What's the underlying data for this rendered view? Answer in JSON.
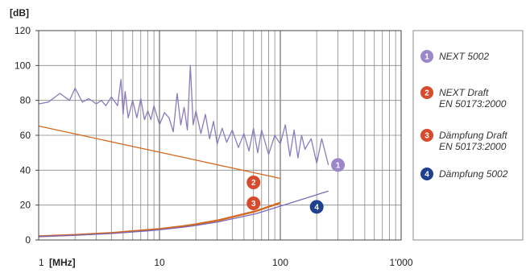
{
  "chart_data": {
    "type": "line",
    "ylabel": "[dB]",
    "xlabel": "[MHz]",
    "x_scale": "log",
    "xlim": [
      1,
      1000
    ],
    "ylim": [
      0,
      120
    ],
    "grid": true,
    "legend_position": "right",
    "x_ticks": [
      {
        "value": 1,
        "label": "1"
      },
      {
        "value": 10,
        "label": "10"
      },
      {
        "value": 100,
        "label": "100"
      },
      {
        "value": 1000,
        "label": "1'000"
      }
    ],
    "y_ticks": [
      {
        "value": 0,
        "label": "0"
      },
      {
        "value": 20,
        "label": "20"
      },
      {
        "value": 40,
        "label": "40"
      },
      {
        "value": 60,
        "label": "60"
      },
      {
        "value": 80,
        "label": "80"
      },
      {
        "value": 100,
        "label": "100"
      },
      {
        "value": 120,
        "label": "120"
      }
    ],
    "series": [
      {
        "id": "1",
        "name": "NEXT 5002",
        "color": "#8b7bbd",
        "badge_color": "#9b87c9",
        "x": [
          1,
          1.2,
          1.5,
          1.8,
          2,
          2.3,
          2.6,
          3,
          3.3,
          3.6,
          4,
          4.5,
          4.8,
          5,
          5.2,
          5.5,
          6,
          6.5,
          7,
          7.5,
          8,
          8.5,
          9,
          10,
          11,
          12,
          13,
          14,
          15,
          16,
          17,
          18,
          19,
          20,
          22,
          24,
          26,
          28,
          30,
          33,
          36,
          40,
          45,
          50,
          55,
          60,
          65,
          70,
          80,
          90,
          100,
          110,
          120,
          130,
          140,
          150,
          160,
          180,
          200,
          220,
          250
        ],
        "values": [
          78,
          79,
          84,
          80,
          87,
          79,
          81,
          78,
          80,
          77,
          82,
          77,
          92,
          72,
          85,
          70,
          80,
          70,
          81,
          69,
          74,
          69,
          77,
          66,
          73,
          70,
          62,
          84,
          66,
          76,
          63,
          100,
          66,
          74,
          61,
          72,
          58,
          68,
          55,
          64,
          56,
          63,
          53,
          61,
          51,
          64,
          50,
          63,
          49,
          60,
          55,
          66,
          48,
          63,
          47,
          60,
          52,
          58,
          44,
          58,
          43
        ]
      },
      {
        "id": "2",
        "name": "NEXT Draft EN 50173:2000",
        "color": "#d2691e",
        "badge_color": "#d84a2c",
        "x": [
          1,
          2,
          5,
          10,
          20,
          50,
          100
        ],
        "values": [
          65.3,
          60.8,
          54.8,
          50.3,
          45.8,
          39.8,
          35.3
        ]
      },
      {
        "id": "3",
        "name": "Dämpfung Draft EN 50173:2000",
        "color": "#d2691e",
        "badge_color": "#d84a2c",
        "x": [
          1,
          2,
          4,
          8,
          10,
          16,
          20,
          31.25,
          62.5,
          100
        ],
        "values": [
          2.1,
          2.9,
          4.0,
          5.7,
          6.3,
          8.0,
          9.0,
          11.4,
          16.5,
          21.3
        ]
      },
      {
        "id": "4",
        "name": "Dämpfung 5002",
        "color": "#7b68b8",
        "badge_color": "#1f3f8f",
        "x": [
          1,
          2,
          4,
          8,
          10,
          16,
          20,
          31.25,
          62.5,
          100,
          155,
          250
        ],
        "values": [
          2.0,
          2.7,
          3.7,
          5.2,
          5.8,
          7.4,
          8.3,
          10.5,
          15.0,
          19.4,
          23.5,
          28.0
        ]
      }
    ],
    "legend": [
      {
        "num": "1",
        "lines": [
          "NEXT 5002"
        ],
        "color": "#9b87c9"
      },
      {
        "num": "2",
        "lines": [
          "NEXT Draft",
          "EN 50173:2000"
        ],
        "color": "#d84a2c"
      },
      {
        "num": "3",
        "lines": [
          "Dämpfung Draft",
          "EN 50173:2000"
        ],
        "color": "#d84a2c"
      },
      {
        "num": "4",
        "lines": [
          "Dämpfung 5002"
        ],
        "color": "#1f3f8f"
      }
    ],
    "in_plot_labels": [
      {
        "num": "1",
        "x": 300,
        "y": 43,
        "color": "#9b87c9"
      },
      {
        "num": "2",
        "x": 60,
        "y": 33,
        "color": "#d84a2c"
      },
      {
        "num": "3",
        "x": 60,
        "y": 21,
        "color": "#d84a2c"
      },
      {
        "num": "4",
        "x": 200,
        "y": 19,
        "color": "#1f3f8f"
      }
    ]
  }
}
